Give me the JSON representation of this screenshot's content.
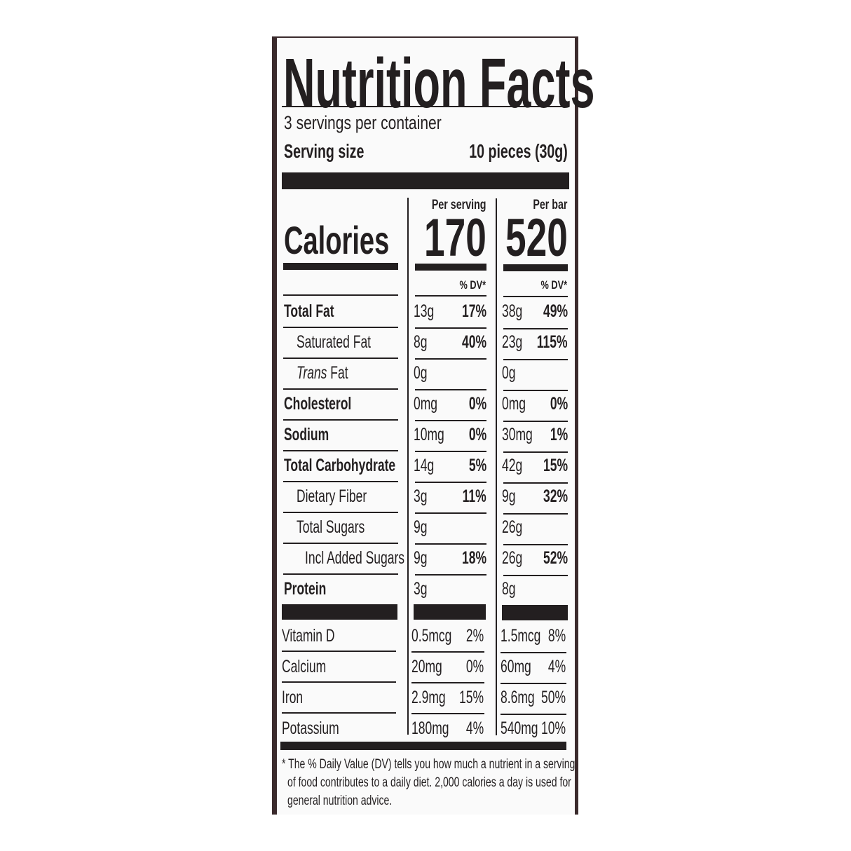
{
  "title": "Nutrition Facts",
  "servings_per_container": "3 servings per container",
  "serving_size_label": "Serving size",
  "serving_size_value": "10 pieces (30g)",
  "calories_label": "Calories",
  "columns": [
    {
      "header": "Per serving",
      "calories": "170",
      "dv_header": "% DV*"
    },
    {
      "header": "Per bar",
      "calories": "520",
      "dv_header": "% DV*"
    }
  ],
  "nutrients": [
    {
      "name": "Total Fat",
      "bold": true,
      "indent": 0,
      "serving": [
        "13g",
        "17%"
      ],
      "bar": [
        "38g",
        "49%"
      ]
    },
    {
      "name": "Saturated Fat",
      "bold": false,
      "indent": 1,
      "serving": [
        "8g",
        "40%"
      ],
      "bar": [
        "23g",
        "115%"
      ]
    },
    {
      "name_italic": "Trans",
      "name": " Fat",
      "bold": false,
      "indent": 1,
      "serving": [
        "0g",
        ""
      ],
      "bar": [
        "0g",
        ""
      ]
    },
    {
      "name": "Cholesterol",
      "bold": true,
      "indent": 0,
      "serving": [
        "0mg",
        "0%"
      ],
      "bar": [
        "0mg",
        "0%"
      ]
    },
    {
      "name": "Sodium",
      "bold": true,
      "indent": 0,
      "serving": [
        "10mg",
        "0%"
      ],
      "bar": [
        "30mg",
        "1%"
      ]
    },
    {
      "name": "Total Carbohydrate",
      "bold": true,
      "indent": 0,
      "serving": [
        "14g",
        "5%"
      ],
      "bar": [
        "42g",
        "15%"
      ]
    },
    {
      "name": "Dietary Fiber",
      "bold": false,
      "indent": 1,
      "serving": [
        "3g",
        "11%"
      ],
      "bar": [
        "9g",
        "32%"
      ]
    },
    {
      "name": "Total Sugars",
      "bold": false,
      "indent": 1,
      "serving": [
        "9g",
        ""
      ],
      "bar": [
        "26g",
        ""
      ]
    },
    {
      "name": "Incl Added Sugars",
      "bold": false,
      "indent": 2,
      "serving": [
        "9g",
        "18%"
      ],
      "bar": [
        "26g",
        "52%"
      ]
    },
    {
      "name": "Protein",
      "bold": true,
      "indent": 0,
      "serving": [
        "3g",
        ""
      ],
      "bar": [
        "8g",
        ""
      ]
    }
  ],
  "vitamins": [
    {
      "name": "Vitamin D",
      "serving": [
        "0.5mcg",
        "2%"
      ],
      "bar": [
        "1.5mcg",
        "8%"
      ]
    },
    {
      "name": "Calcium",
      "serving": [
        "20mg",
        "0%"
      ],
      "bar": [
        "60mg",
        "4%"
      ]
    },
    {
      "name": "Iron",
      "serving": [
        "2.9mg",
        "15%"
      ],
      "bar": [
        "8.6mg",
        "50%"
      ]
    },
    {
      "name": "Potassium",
      "serving": [
        "180mg",
        "4%"
      ],
      "bar": [
        "540mg",
        "10%"
      ]
    }
  ],
  "footnote": [
    "* The % Daily Value (DV) tells you how much a nutrient in a serving",
    "of food contributes to a daily diet. 2,000 calories a day is used for",
    "general nutrition advice."
  ]
}
